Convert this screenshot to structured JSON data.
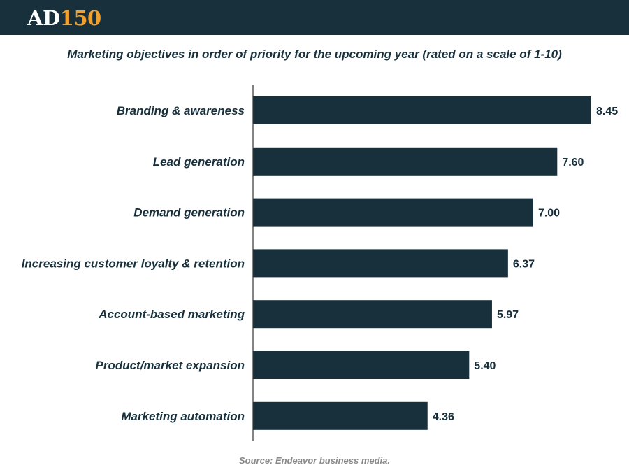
{
  "header": {
    "logo_text": "AD",
    "logo_number": "150"
  },
  "source": "Source: Endeavor business media.",
  "colors": {
    "header_bg": "#17303c",
    "bar": "#17303c",
    "logo_accent": "#f0a031",
    "text": "#17303c",
    "source_text": "#8a8a8a"
  },
  "chart_data": {
    "type": "bar",
    "orientation": "horizontal",
    "title": "Marketing objectives in order of priority for the upcoming year (rated on a scale of 1-10)",
    "categories": [
      "Branding & awareness",
      "Lead generation",
      "Demand generation",
      "Increasing customer loyalty & retention",
      "Account-based marketing",
      "Product/market expansion",
      "Marketing automation"
    ],
    "values": [
      8.45,
      7.6,
      7.0,
      6.37,
      5.97,
      5.4,
      4.36
    ],
    "value_labels": [
      "8.45",
      "7.60",
      "7.00",
      "6.37",
      "5.97",
      "5.40",
      "4.36"
    ],
    "xlim": [
      0,
      8.45
    ],
    "grid": false,
    "legend": "none"
  }
}
